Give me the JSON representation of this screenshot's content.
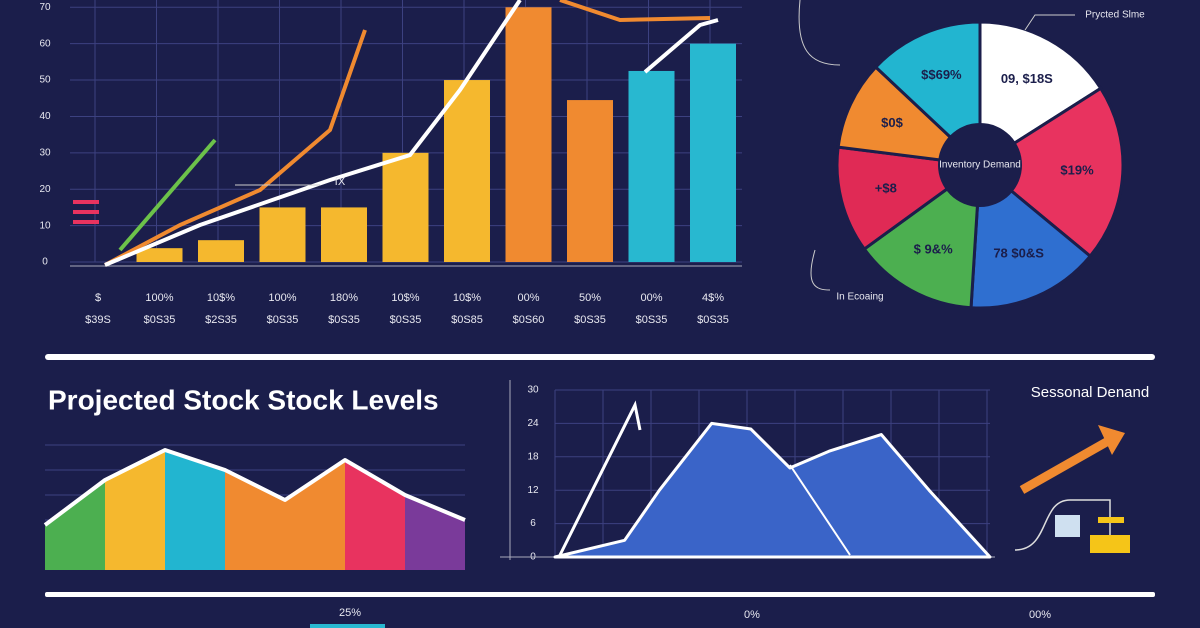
{
  "chart_data": [
    {
      "type": "bar",
      "categories": [
        "$",
        "100%",
        "10$%",
        "100%",
        "180%",
        "10$%",
        "10$%",
        "00%",
        "50%",
        "00%",
        "4$%"
      ],
      "subcategories": [
        "$39S",
        "$0S35",
        "$2S35",
        "$0S35",
        "$0S35",
        "$0S35",
        "$0S85",
        "$0S60",
        "$0S35",
        "$0S35",
        "$0S35"
      ],
      "values": [
        null,
        3.8,
        6,
        15,
        15,
        30,
        50,
        70,
        44.5,
        52.5,
        60
      ],
      "colors": [
        "#f5b82e",
        "#f5b82e",
        "#f5b82e",
        "#f5b82e",
        "#f5b82e",
        "#f5b82e",
        "#f5b82e",
        "#f08a30",
        "#f08a30",
        "#28b8d0",
        "#28b8d0"
      ],
      "ylim": [
        0,
        72
      ],
      "yticks": [
        0,
        10,
        20,
        30,
        40,
        50,
        60,
        70
      ],
      "grid": true,
      "annotation": "fX"
    },
    {
      "type": "pie",
      "center_label": "Inventory Demand",
      "categories": [
        "09, $18S",
        "$19%",
        "78 $0&S",
        "$ 9&%",
        "+$8",
        "$0$",
        "$$69%"
      ],
      "values": [
        16,
        20,
        15,
        14,
        12,
        10,
        13
      ],
      "colors": [
        "#ffffff",
        "#e8335f",
        "#2f6fd0",
        "#4caf50",
        "#e02a55",
        "#f08a30",
        "#22b5d0"
      ],
      "annotations": [
        "Prycted Slme",
        "In Ecoaing"
      ]
    },
    {
      "type": "area",
      "title": "Projected Stock Stock Levels",
      "values": [
        45,
        90,
        120,
        100,
        70,
        110,
        75,
        50
      ],
      "colors": [
        "#4caf50",
        "#f5b82e",
        "#22b5d0",
        "#f08a30",
        "#f08a30",
        "#e8335f",
        "#7a3a9a"
      ],
      "ylim": [
        0,
        140
      ],
      "grid": true
    },
    {
      "type": "line-area",
      "x": [
        0,
        16,
        24,
        36,
        45,
        54,
        63,
        75,
        86,
        100
      ],
      "values": [
        0,
        3,
        12,
        24,
        23,
        16,
        19,
        22,
        12,
        0
      ],
      "xlim": [
        0,
        100
      ],
      "ylim": [
        0,
        30
      ],
      "yticks": [
        0,
        6,
        12,
        18,
        24,
        30
      ],
      "color": "#3a64c8",
      "grid": true
    }
  ],
  "side_title": "Sessonal Denand",
  "footer": [
    "25%",
    "0%",
    "00%"
  ]
}
